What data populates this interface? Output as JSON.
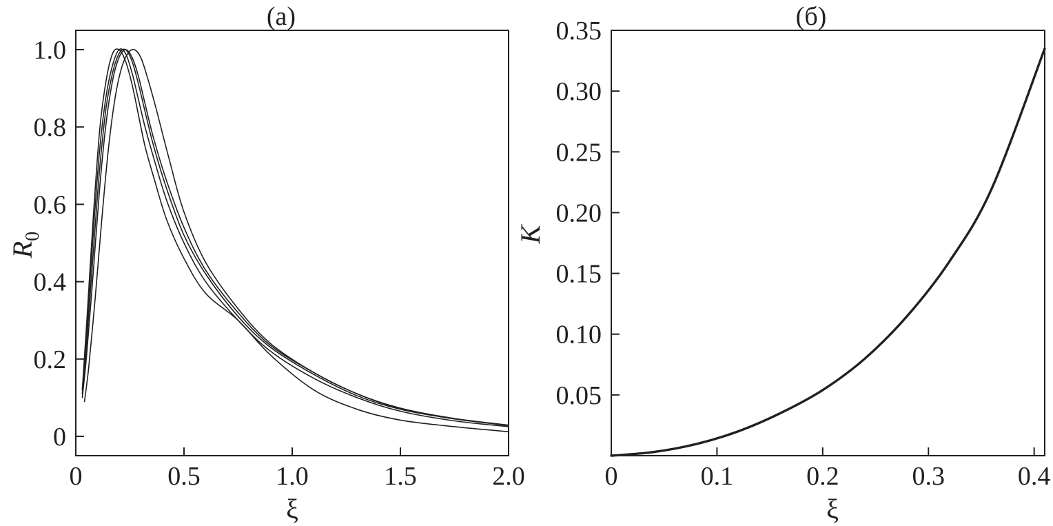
{
  "chart_data": [
    {
      "type": "line",
      "title": "(a)",
      "xlabel": "ξ",
      "ylabel": "R",
      "ylabel_sub": "0",
      "xlim": [
        0,
        2.0
      ],
      "ylim": [
        -0.05,
        1.05
      ],
      "xticks": [
        "0",
        "0.5",
        "1.0",
        "1.5",
        "2.0"
      ],
      "yticks": [
        "0",
        "0.2",
        "0.4",
        "0.6",
        "0.8",
        "1.0"
      ],
      "grid": false,
      "line_color": "#231f20",
      "series": [
        {
          "x": [
            0.03,
            0.05,
            0.08,
            0.11,
            0.14,
            0.17,
            0.2,
            0.23,
            0.26,
            0.29,
            0.32,
            0.36,
            0.42,
            0.5,
            0.6,
            0.75,
            0.9,
            1.1,
            1.3,
            1.5,
            1.75,
            2.0
          ],
          "y": [
            0.12,
            0.27,
            0.52,
            0.74,
            0.88,
            0.96,
            1.0,
            0.99,
            0.94,
            0.87,
            0.8,
            0.72,
            0.61,
            0.5,
            0.4,
            0.3,
            0.22,
            0.15,
            0.1,
            0.065,
            0.04,
            0.025
          ]
        },
        {
          "x": [
            0.03,
            0.05,
            0.08,
            0.11,
            0.14,
            0.17,
            0.2,
            0.23,
            0.26,
            0.29,
            0.32,
            0.36,
            0.42,
            0.5,
            0.6,
            0.75,
            0.9,
            1.1,
            1.3,
            1.5,
            1.75,
            2.0
          ],
          "y": [
            0.11,
            0.24,
            0.47,
            0.69,
            0.85,
            0.94,
            0.99,
            1.0,
            0.97,
            0.91,
            0.84,
            0.75,
            0.64,
            0.52,
            0.42,
            0.31,
            0.23,
            0.16,
            0.105,
            0.07,
            0.045,
            0.028
          ]
        },
        {
          "x": [
            0.03,
            0.05,
            0.08,
            0.11,
            0.14,
            0.17,
            0.2,
            0.23,
            0.26,
            0.29,
            0.32,
            0.36,
            0.42,
            0.5,
            0.6,
            0.75,
            0.9,
            1.1,
            1.3,
            1.5,
            1.75,
            2.0
          ],
          "y": [
            0.1,
            0.21,
            0.42,
            0.64,
            0.81,
            0.92,
            0.98,
            1.0,
            0.98,
            0.93,
            0.86,
            0.77,
            0.66,
            0.54,
            0.43,
            0.32,
            0.235,
            0.165,
            0.11,
            0.072,
            0.046,
            0.029
          ]
        },
        {
          "x": [
            0.03,
            0.05,
            0.08,
            0.11,
            0.14,
            0.17,
            0.2,
            0.23,
            0.26,
            0.29,
            0.32,
            0.36,
            0.42,
            0.5,
            0.6,
            0.75,
            0.9,
            1.1,
            1.3,
            1.5,
            1.75,
            2.0
          ],
          "y": [
            0.12,
            0.29,
            0.56,
            0.79,
            0.92,
            0.99,
            1.0,
            0.97,
            0.91,
            0.83,
            0.75,
            0.67,
            0.56,
            0.46,
            0.37,
            0.3,
            0.21,
            0.12,
            0.07,
            0.042,
            0.025,
            0.012
          ]
        },
        {
          "x": [
            0.04,
            0.06,
            0.09,
            0.12,
            0.15,
            0.18,
            0.21,
            0.24,
            0.27,
            0.3,
            0.33,
            0.37,
            0.43,
            0.5,
            0.6,
            0.75,
            0.9,
            1.1,
            1.3,
            1.5,
            1.75,
            2.0
          ],
          "y": [
            0.09,
            0.18,
            0.36,
            0.56,
            0.74,
            0.87,
            0.95,
            0.99,
            1.0,
            0.98,
            0.93,
            0.85,
            0.72,
            0.58,
            0.45,
            0.33,
            0.24,
            0.165,
            0.11,
            0.073,
            0.046,
            0.029
          ]
        }
      ]
    },
    {
      "type": "line",
      "title": "(б)",
      "xlabel": "ξ",
      "ylabel": "K",
      "xlim": [
        0,
        0.41
      ],
      "ylim": [
        0,
        0.35
      ],
      "xticks": [
        "0",
        "0.1",
        "0.2",
        "0.3",
        "0.4"
      ],
      "yticks": [
        "0.05",
        "0.10",
        "0.15",
        "0.20",
        "0.25",
        "0.30",
        "0.35"
      ],
      "grid": false,
      "line_color": "#231f20",
      "series": [
        {
          "x": [
            0,
            0.04,
            0.08,
            0.12,
            0.16,
            0.2,
            0.24,
            0.28,
            0.32,
            0.36,
            0.41
          ],
          "y": [
            0,
            0.003,
            0.0095,
            0.02,
            0.035,
            0.054,
            0.08,
            0.115,
            0.16,
            0.22,
            0.335
          ]
        }
      ]
    }
  ]
}
